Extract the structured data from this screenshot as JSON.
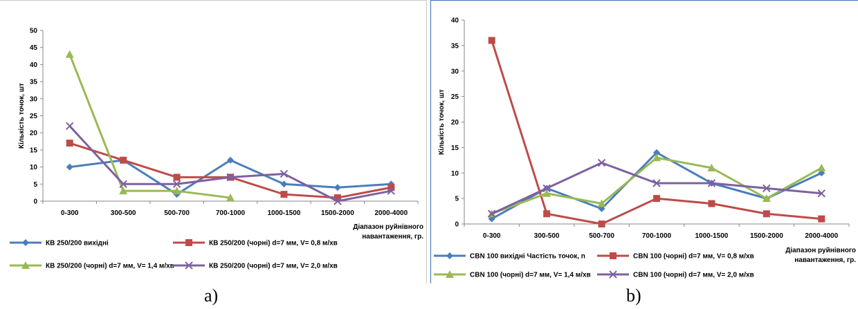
{
  "chart_data": [
    {
      "type": "line",
      "caption": "a)",
      "categories": [
        "0-300",
        "300-500",
        "500-700",
        "700-1000",
        "1000-1500",
        "1500-2000",
        "2000-4000"
      ],
      "ylabel": "Кількість точок, шт",
      "xlabel_lines": [
        "Діапазон руйнівного",
        "навантаження, гр."
      ],
      "ylim": [
        0,
        50
      ],
      "yticks": [
        0,
        5,
        10,
        15,
        20,
        25,
        30,
        35,
        40,
        45,
        50
      ],
      "series": [
        {
          "name": "КВ 250/200 вихідні",
          "color": "#4a7ebb",
          "marker": "diamond",
          "values": [
            10,
            12,
            2,
            12,
            5,
            4,
            5
          ]
        },
        {
          "name": "КВ 250/200  (чорні) d=7 мм, V= 0,8 м/хв",
          "color": "#be4b48",
          "marker": "square",
          "values": [
            17,
            12,
            7,
            7,
            2,
            1,
            4
          ]
        },
        {
          "name": "КВ 250/200 (чорні) d=7 мм, V= 1,4 м/хв",
          "color": "#98b954",
          "marker": "triangle",
          "values": [
            43,
            3,
            3,
            1,
            null,
            null,
            null
          ]
        },
        {
          "name": "КВ 250/200 (чорні) d=7 мм, V= 2,0 м/хв",
          "color": "#7d60a0",
          "marker": "x",
          "values": [
            22,
            5,
            5,
            7,
            8,
            0,
            3
          ]
        }
      ]
    },
    {
      "type": "line",
      "caption": "b)",
      "categories": [
        "0-300",
        "300-500",
        "500-700",
        "700-1000",
        "1000-1500",
        "1500-2000",
        "2000-4000"
      ],
      "ylabel": "Кількість точок, шт",
      "xlabel_lines": [
        "Діапазон руйнівного",
        "навантаження, гр."
      ],
      "ylim": [
        0,
        40
      ],
      "yticks": [
        0,
        5,
        10,
        15,
        20,
        25,
        30,
        35,
        40
      ],
      "series": [
        {
          "name": "CBN 100 вихідні  Частість точок, n",
          "color": "#4a7ebb",
          "marker": "diamond",
          "values": [
            1,
            7,
            3,
            14,
            8,
            5,
            10
          ]
        },
        {
          "name": "CBN 100 (чорні) d=7 мм, V= 0,8 м/хв",
          "color": "#be4b48",
          "marker": "square",
          "values": [
            36,
            2,
            0,
            5,
            4,
            2,
            1
          ]
        },
        {
          "name": "CBN 100 (чорні) d=7 мм, V= 1,4 м/хв",
          "color": "#98b954",
          "marker": "triangle",
          "values": [
            2,
            6,
            4,
            13,
            11,
            5,
            11
          ]
        },
        {
          "name": "CBN 100 (чорні) d=7 мм, V= 2,0 м/хв",
          "color": "#7d60a0",
          "marker": "x",
          "values": [
            2,
            7,
            12,
            8,
            8,
            7,
            6
          ]
        }
      ]
    }
  ]
}
